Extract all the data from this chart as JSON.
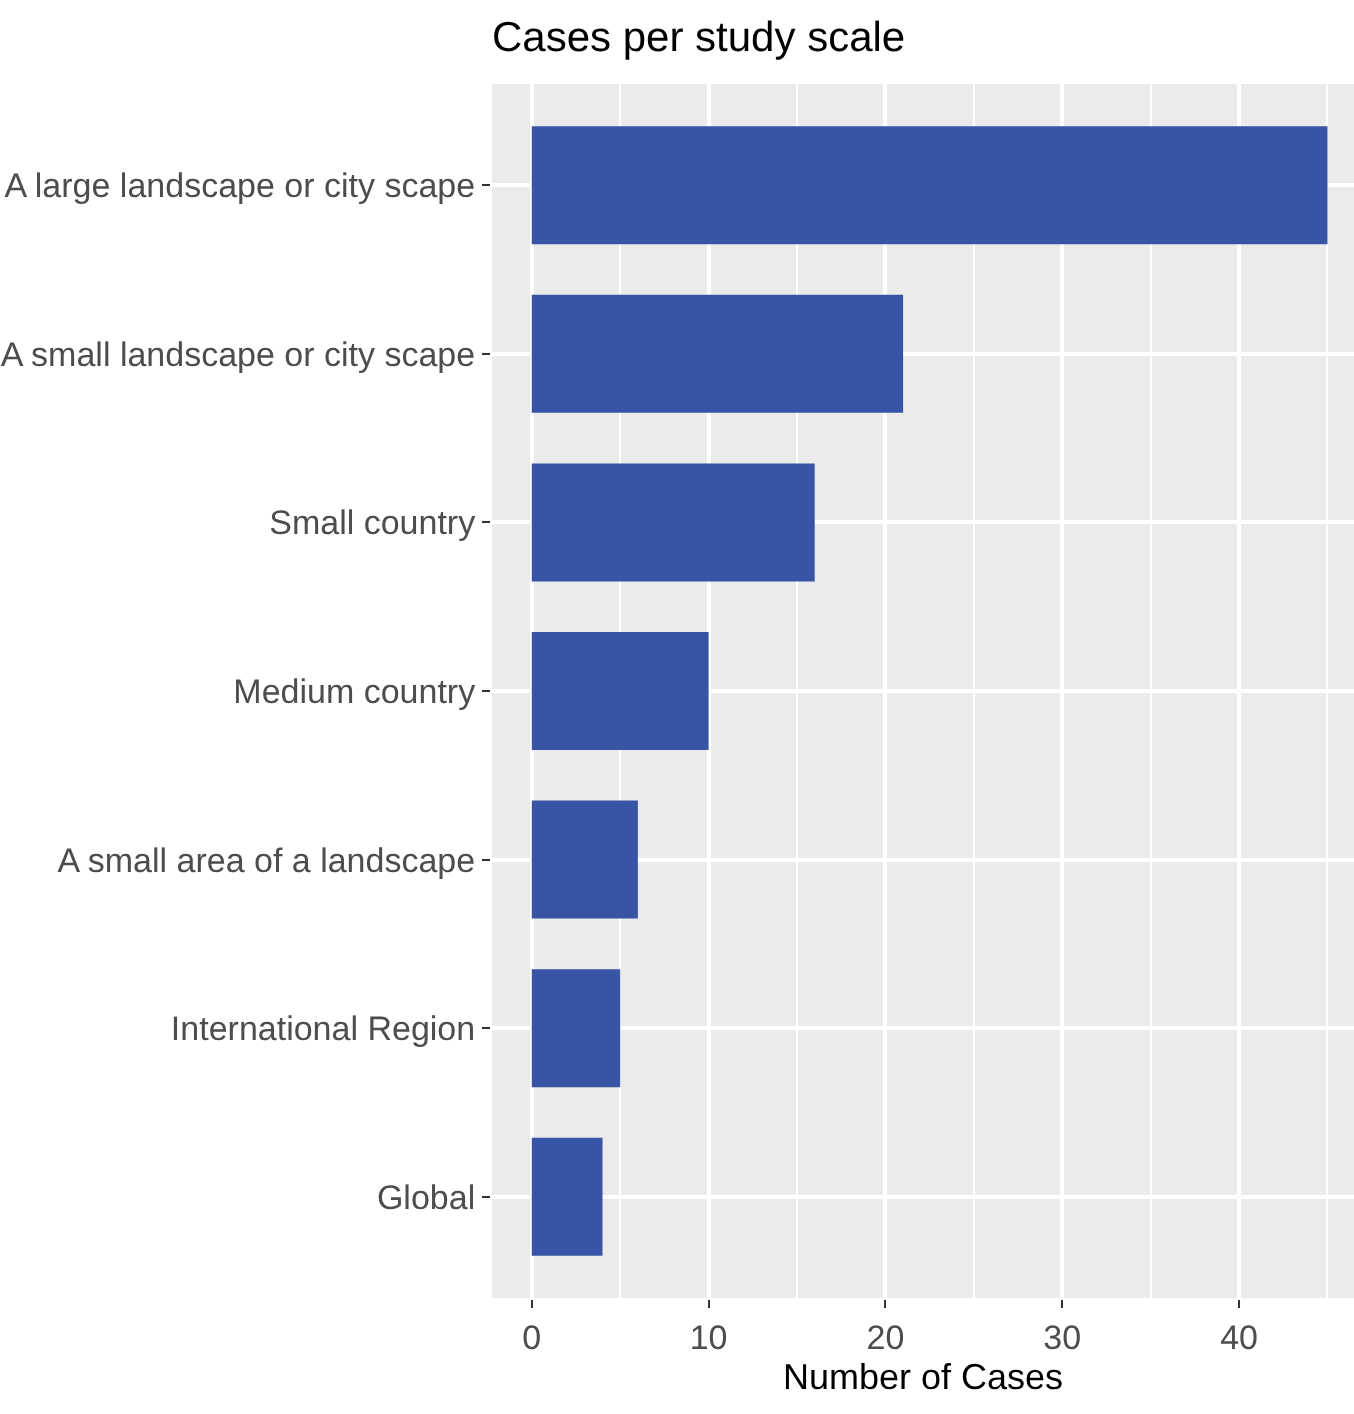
{
  "chart_data": {
    "type": "bar",
    "orientation": "horizontal",
    "title": "Cases per study scale",
    "xlabel": "Number of Cases",
    "categories": [
      "A large landscape or city scape",
      "A small landscape or city scape",
      "Small country",
      "Medium country",
      "A small area of a landscape",
      "International Region",
      "Global"
    ],
    "values": [
      45,
      21,
      16,
      10,
      6,
      5,
      4
    ],
    "color": "#3855a5",
    "xlim": [
      -2.25,
      46.5
    ],
    "xticks": [
      0,
      10,
      20,
      30,
      40
    ],
    "grid": true
  }
}
